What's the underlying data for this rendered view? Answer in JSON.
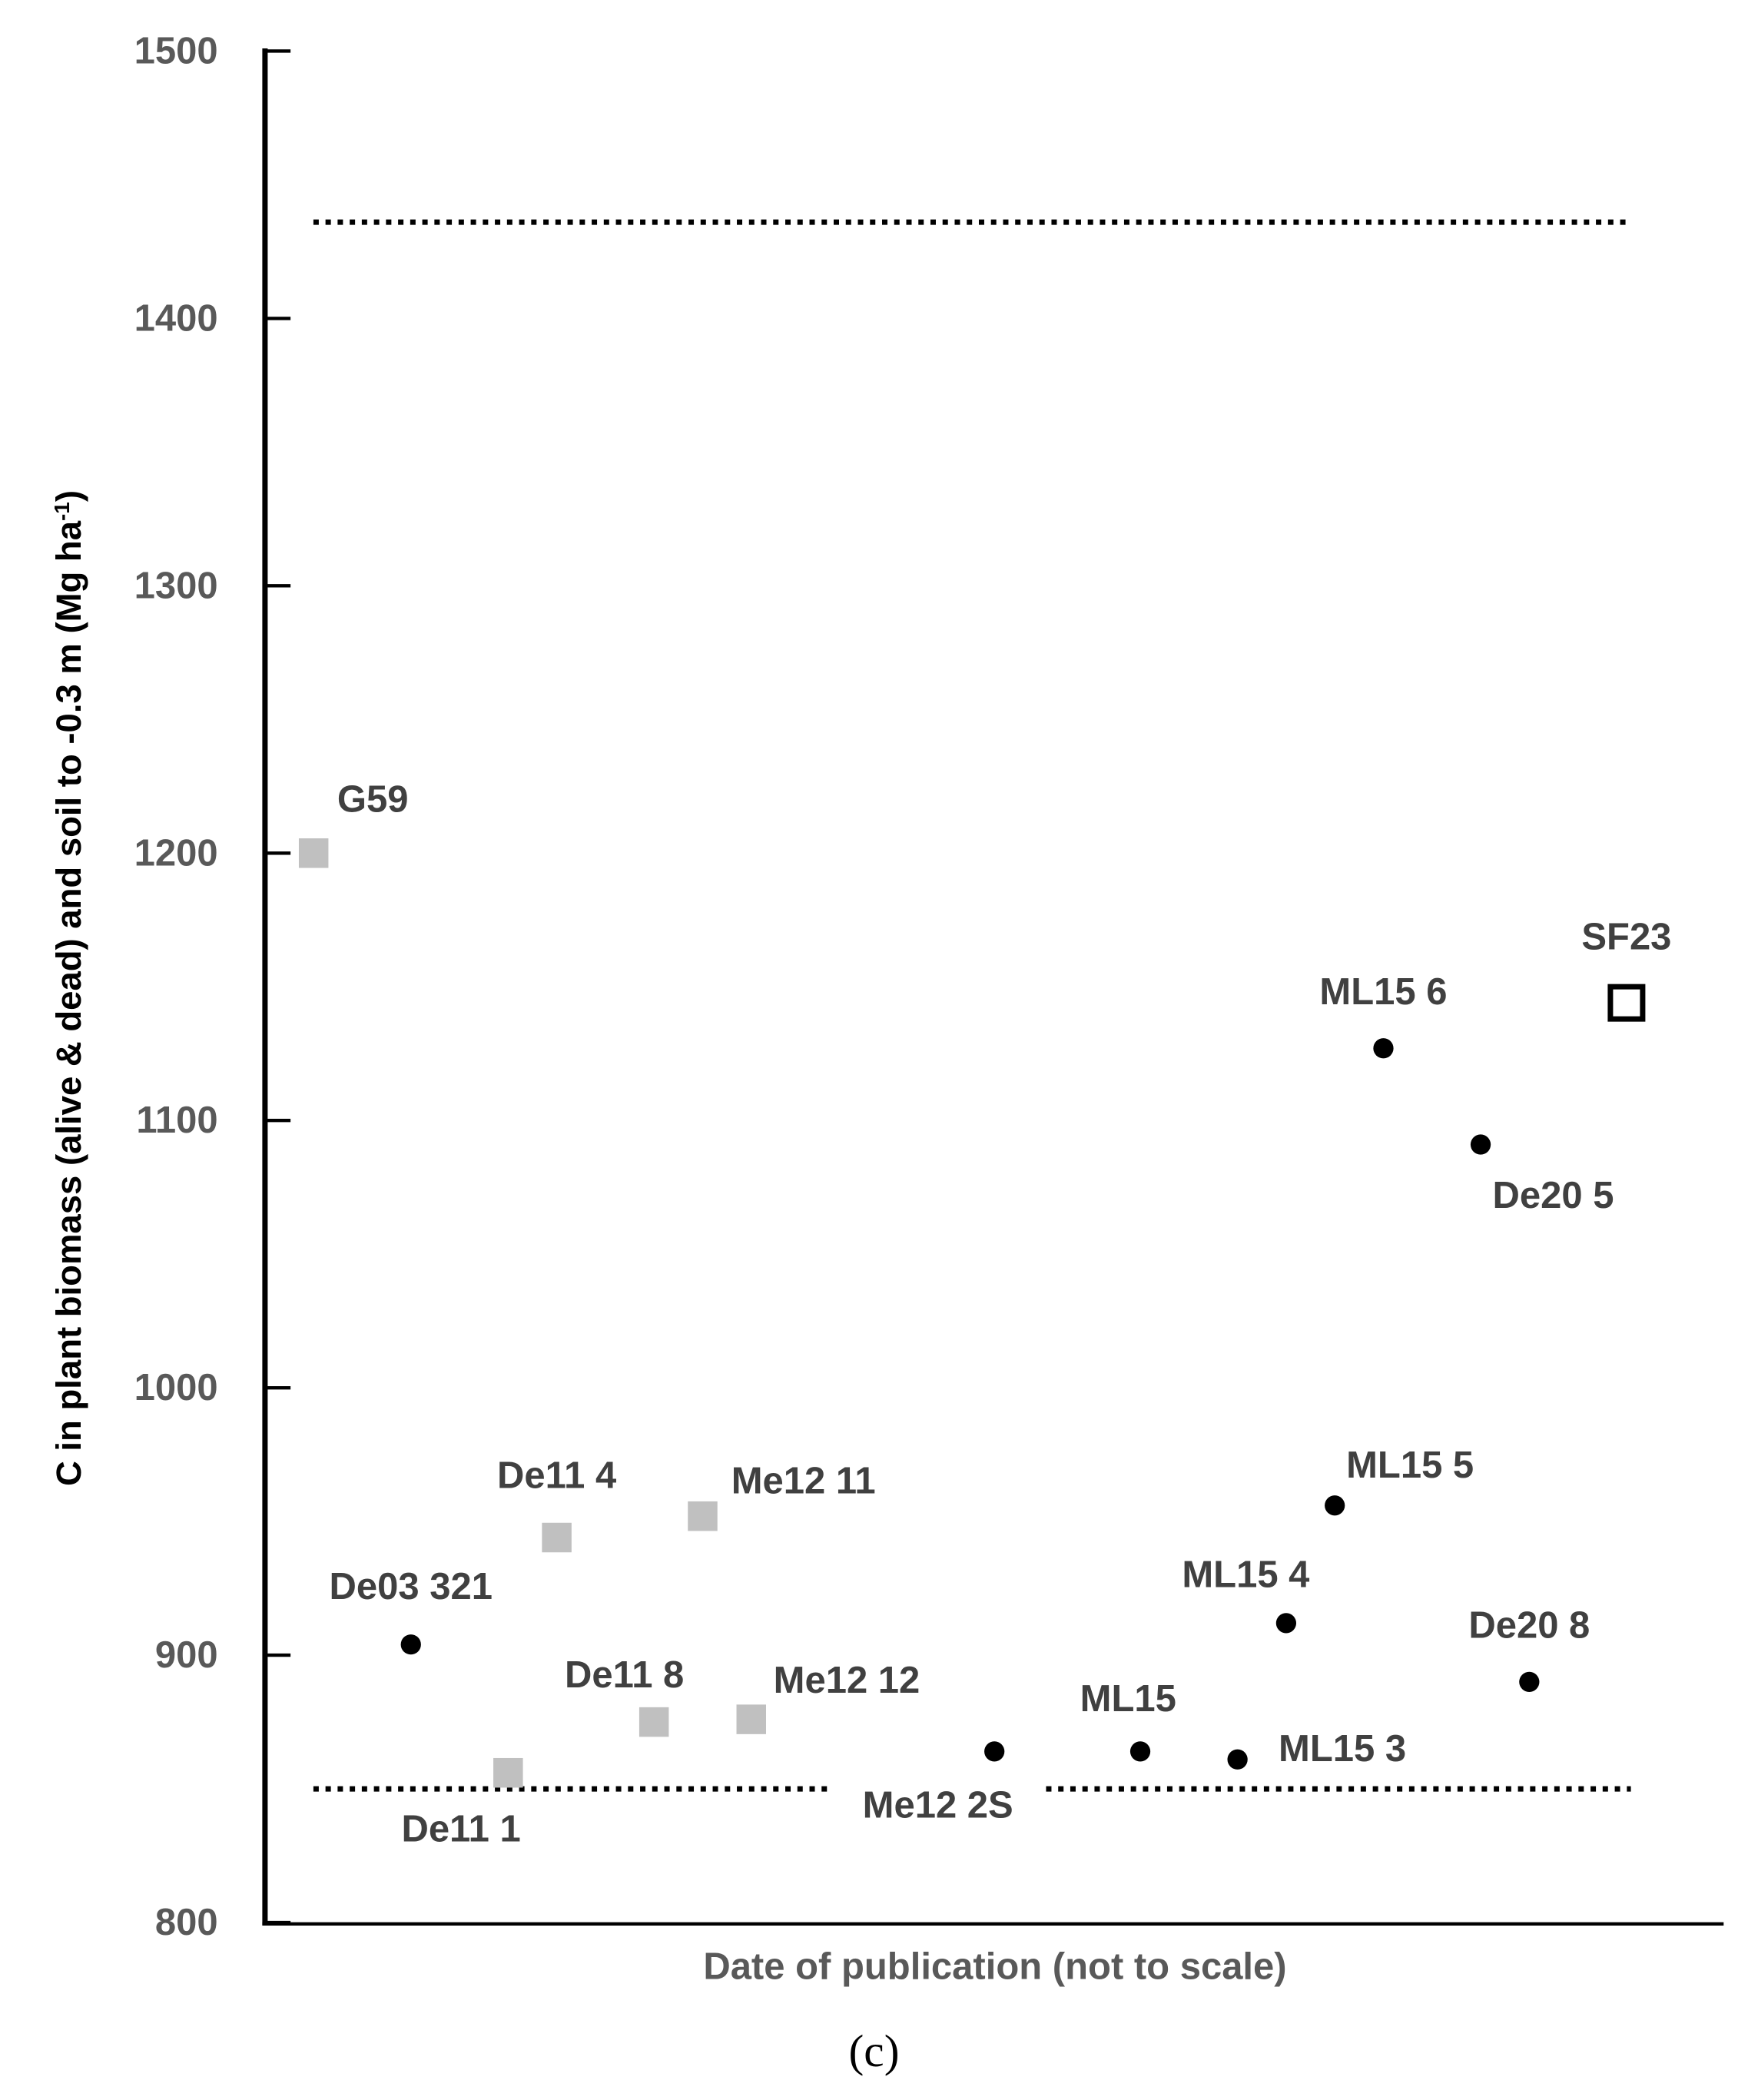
{
  "chart_data": {
    "type": "scatter",
    "panel_label": "(c)",
    "xlabel": "Date of publication (not to scale)",
    "ylabel": "C in plant biomass (alive & dead) and soil to -0.3 m (Mg ha",
    "ylabel_sup": "-1",
    "ylabel_end": ")",
    "ylim": [
      800,
      1500
    ],
    "yticks": [
      "800",
      "900",
      "1000",
      "1100",
      "1200",
      "1300",
      "1400",
      "1500"
    ],
    "xlim": [
      0,
      30
    ],
    "reference_lines": [
      1436,
      850
    ],
    "colors": {
      "gray_square": "#c0c0c0",
      "black_circle": "#000000",
      "open_square": "#000000"
    },
    "points": [
      {
        "label": "G59",
        "x": 1,
        "y": 1200,
        "marker": "gray-square"
      },
      {
        "label": "De03 321",
        "x": 3,
        "y": 904,
        "marker": "black-circle"
      },
      {
        "label": "De11 1",
        "x": 5,
        "y": 856,
        "marker": "gray-square"
      },
      {
        "label": "De11 4",
        "x": 6,
        "y": 944,
        "marker": "gray-square"
      },
      {
        "label": "De11 8",
        "x": 8,
        "y": 875,
        "marker": "gray-square"
      },
      {
        "label": "Me12 11",
        "x": 9,
        "y": 952,
        "marker": "gray-square"
      },
      {
        "label": "Me12 12",
        "x": 10,
        "y": 876,
        "marker": "gray-square"
      },
      {
        "label": "Me12 2S",
        "x": 15,
        "y": 864,
        "marker": "black-circle"
      },
      {
        "label": "ML15",
        "x": 18,
        "y": 864,
        "marker": "black-circle"
      },
      {
        "label": "ML15 3",
        "x": 20,
        "y": 861,
        "marker": "black-circle"
      },
      {
        "label": "ML15 4",
        "x": 21,
        "y": 912,
        "marker": "black-circle"
      },
      {
        "label": "ML15 5",
        "x": 22,
        "y": 956,
        "marker": "black-circle"
      },
      {
        "label": "ML15 6",
        "x": 23,
        "y": 1127,
        "marker": "black-circle"
      },
      {
        "label": "De20 5",
        "x": 25,
        "y": 1091,
        "marker": "black-circle"
      },
      {
        "label": "De20 8",
        "x": 26,
        "y": 890,
        "marker": "black-circle"
      },
      {
        "label": "SF23",
        "x": 28,
        "y": 1144,
        "marker": "open-square"
      }
    ]
  }
}
